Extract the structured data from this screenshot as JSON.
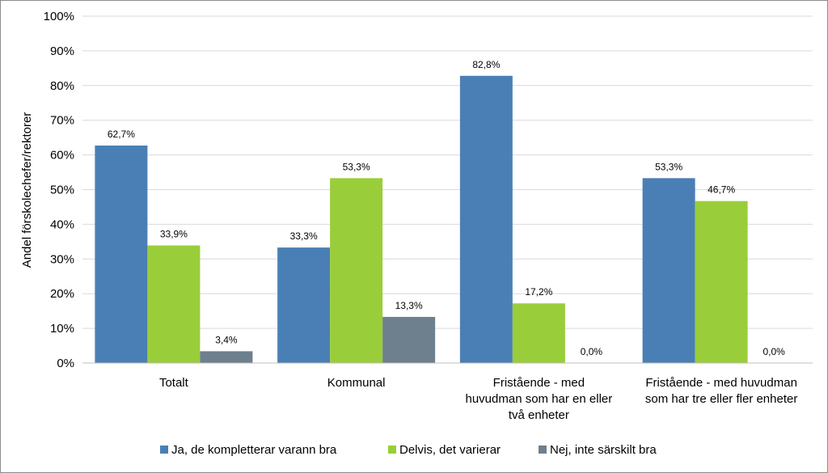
{
  "chart_data": {
    "type": "bar",
    "title": "",
    "xlabel": "",
    "ylabel": "Andel förskolechefer/rektorer",
    "ylim": [
      0,
      100
    ],
    "ytick_labels": [
      "0%",
      "10%",
      "20%",
      "30%",
      "40%",
      "50%",
      "60%",
      "70%",
      "80%",
      "90%",
      "100%"
    ],
    "grid": true,
    "legend_position": "bottom",
    "categories": [
      [
        "Totalt"
      ],
      [
        "Kommunal"
      ],
      [
        "Fristående -  med",
        "huvudman som har en eller",
        "två enheter"
      ],
      [
        "Fristående -  med huvudman",
        "som har tre eller fler enheter"
      ]
    ],
    "series": [
      {
        "name": "Ja, de kompletterar varann bra",
        "color": "#4a7fb5",
        "values": [
          62.7,
          33.3,
          82.8,
          53.3
        ],
        "labels": [
          "62,7%",
          "33,3%",
          "82,8%",
          "53,3%"
        ]
      },
      {
        "name": "Delvis, det varierar",
        "color": "#9acd3a",
        "values": [
          33.9,
          53.3,
          17.2,
          46.7
        ],
        "labels": [
          "33,9%",
          "53,3%",
          "17,2%",
          "46,7%"
        ]
      },
      {
        "name": "Nej, inte särskilt bra",
        "color": "#6e7f8e",
        "values": [
          3.4,
          13.3,
          0.0,
          0.0
        ],
        "labels": [
          "3,4%",
          "13,3%",
          "0,0%",
          "0,0%"
        ]
      }
    ]
  }
}
